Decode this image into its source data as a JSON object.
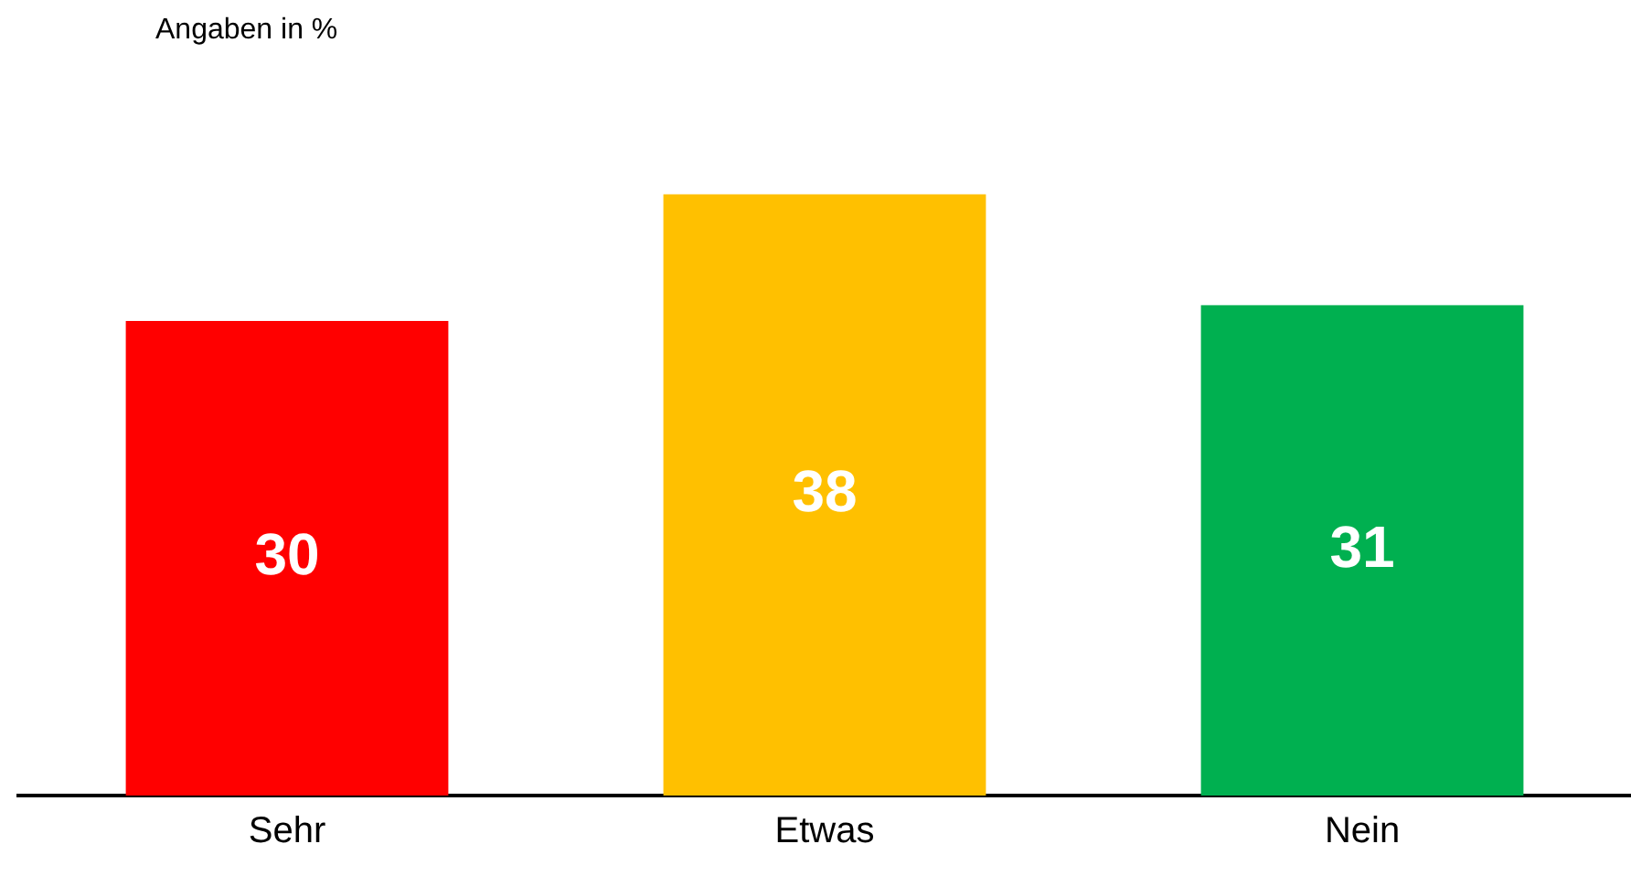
{
  "chart_data": {
    "type": "bar",
    "subtitle": "Angaben in %",
    "categories": [
      "Sehr",
      "Etwas",
      "Nein"
    ],
    "values": [
      30,
      38,
      31
    ],
    "colors": [
      "#ff0000",
      "#ffc000",
      "#00b050"
    ],
    "data_labels": true,
    "grid": false,
    "legend": false
  }
}
